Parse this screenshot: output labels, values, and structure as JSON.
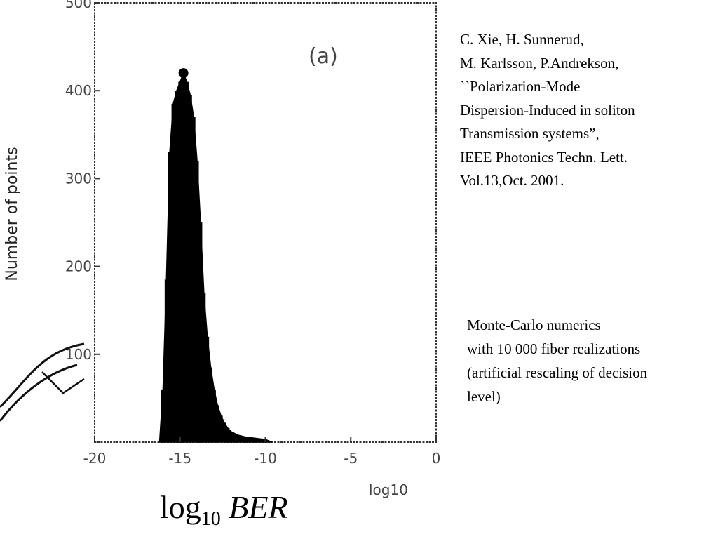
{
  "citation": {
    "lines": [
      "C. Xie, H. Sunnerud,",
      "M. Karlsson, P.Andrekson,",
      "``Polarization-Mode",
      "Dispersion-Induced in soliton",
      "Transmission systems”,",
      "IEEE Photonics Techn. Lett.",
      "Vol.13,Oct. 2001."
    ]
  },
  "note": {
    "lines": [
      "Monte-Carlo numerics",
      "with 10 000 fiber realizations",
      "(artificial rescaling of decision",
      "level)"
    ]
  },
  "x_title": {
    "main": "log",
    "sub": "10",
    "var": "BER"
  },
  "chart_data": {
    "type": "bar",
    "panel_label": "(a)",
    "ylabel": "Number of points",
    "xlabel_scan": "log10",
    "xlim": [
      -20,
      0
    ],
    "ylim": [
      0,
      500
    ],
    "x_ticks": [
      -20,
      -15,
      -10,
      -5,
      0
    ],
    "x_tick_labels": [
      "-20",
      "-15",
      "-10",
      "-5",
      "0"
    ],
    "y_ticks": [
      100,
      200,
      300,
      400,
      500
    ],
    "y_tick_labels": [
      "100",
      "200",
      "300",
      "400",
      "500"
    ],
    "bins": [
      {
        "x": -16.2,
        "y": 0
      },
      {
        "x": -16.0,
        "y": 60
      },
      {
        "x": -15.8,
        "y": 185
      },
      {
        "x": -15.6,
        "y": 330
      },
      {
        "x": -15.4,
        "y": 385
      },
      {
        "x": -15.2,
        "y": 400
      },
      {
        "x": -15.0,
        "y": 410
      },
      {
        "x": -14.8,
        "y": 420
      },
      {
        "x": -14.6,
        "y": 410
      },
      {
        "x": -14.4,
        "y": 395
      },
      {
        "x": -14.2,
        "y": 370
      },
      {
        "x": -14.0,
        "y": 320
      },
      {
        "x": -13.8,
        "y": 250
      },
      {
        "x": -13.6,
        "y": 170
      },
      {
        "x": -13.4,
        "y": 120
      },
      {
        "x": -13.2,
        "y": 85
      },
      {
        "x": -13.0,
        "y": 60
      },
      {
        "x": -12.8,
        "y": 42
      },
      {
        "x": -12.6,
        "y": 30
      },
      {
        "x": -12.4,
        "y": 22
      },
      {
        "x": -12.2,
        "y": 16
      },
      {
        "x": -12.0,
        "y": 12
      },
      {
        "x": -11.6,
        "y": 8
      },
      {
        "x": -11.2,
        "y": 6
      },
      {
        "x": -10.8,
        "y": 5
      },
      {
        "x": -10.4,
        "y": 4
      },
      {
        "x": -10.0,
        "y": 3
      },
      {
        "x": -9.6,
        "y": 0
      }
    ],
    "peak": {
      "x": -14.8,
      "y": 420
    }
  }
}
